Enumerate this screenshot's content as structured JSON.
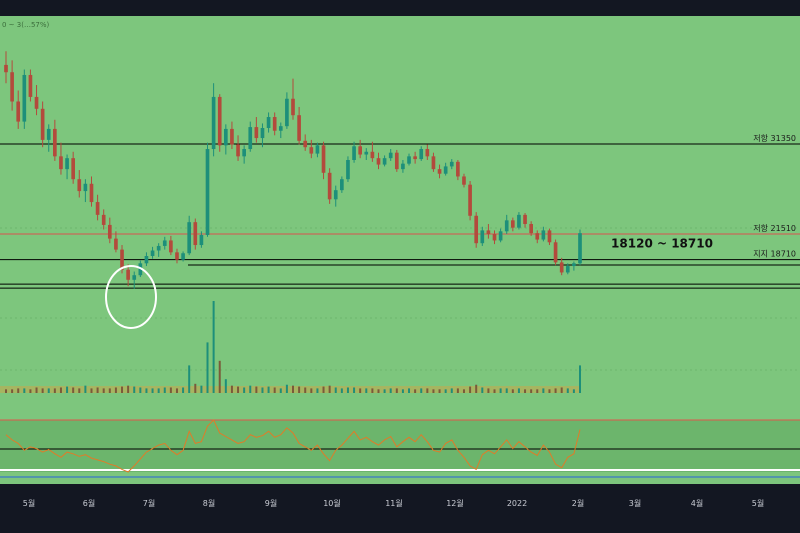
{
  "chart_data": {
    "type": "candlestick",
    "legend_text": "0 ~ 3(…57%)",
    "x_ticks": [
      "5월",
      "6월",
      "7월",
      "8월",
      "9월",
      "10월",
      "11월",
      "12월",
      "2022",
      "2월",
      "3월",
      "4월",
      "5월"
    ],
    "price_levels": [
      {
        "label": "저항 31350",
        "value": 31350,
        "color": "#000000"
      },
      {
        "label": "저항 21510",
        "value": 21510,
        "color": "#d9534f"
      },
      {
        "label": "지지 18710",
        "value": 18710,
        "color": "#000000"
      }
    ],
    "support_zone": {
      "label": "18120 ~ 18710",
      "low": 18120,
      "high": 18710
    },
    "bottom_support": {
      "value": 15800
    },
    "candles": [
      [
        40000,
        41500,
        38000,
        39200
      ],
      [
        39200,
        40500,
        35000,
        36000
      ],
      [
        36000,
        37200,
        33000,
        33800
      ],
      [
        33800,
        39500,
        33000,
        38900
      ],
      [
        38900,
        39500,
        36000,
        36500
      ],
      [
        36500,
        37800,
        34500,
        35200
      ],
      [
        35200,
        36000,
        31000,
        31800
      ],
      [
        31800,
        33500,
        30500,
        33000
      ],
      [
        33000,
        34000,
        29500,
        30000
      ],
      [
        30000,
        31500,
        28000,
        28600
      ],
      [
        28600,
        30200,
        27500,
        29800
      ],
      [
        29800,
        30500,
        27000,
        27500
      ],
      [
        27500,
        28500,
        25500,
        26200
      ],
      [
        26200,
        27500,
        25000,
        27000
      ],
      [
        27000,
        27800,
        24500,
        25000
      ],
      [
        25000,
        25800,
        23000,
        23600
      ],
      [
        23600,
        24200,
        22000,
        22500
      ],
      [
        22500,
        23300,
        20500,
        21000
      ],
      [
        21000,
        21800,
        19500,
        19800
      ],
      [
        19800,
        20300,
        17200,
        17600
      ],
      [
        17600,
        18200,
        15800,
        16500
      ],
      [
        16500,
        17400,
        15500,
        17000
      ],
      [
        17000,
        18600,
        16800,
        18300
      ],
      [
        18300,
        19500,
        18000,
        19100
      ],
      [
        19100,
        20100,
        18800,
        19700
      ],
      [
        19700,
        20500,
        19000,
        20200
      ],
      [
        20200,
        21200,
        19800,
        20800
      ],
      [
        20800,
        21300,
        19200,
        19500
      ],
      [
        19500,
        19900,
        18300,
        18700
      ],
      [
        18700,
        19600,
        18500,
        19400
      ],
      [
        19400,
        23500,
        19200,
        22800
      ],
      [
        22800,
        23200,
        19800,
        20300
      ],
      [
        20300,
        21800,
        20000,
        21400
      ],
      [
        21400,
        31500,
        21200,
        30800
      ],
      [
        30800,
        38000,
        30000,
        36500
      ],
      [
        36500,
        36800,
        30500,
        31200
      ],
      [
        31200,
        33500,
        30200,
        33000
      ],
      [
        33000,
        33800,
        30800,
        31300
      ],
      [
        31300,
        32300,
        29500,
        30000
      ],
      [
        30000,
        31200,
        29200,
        30800
      ],
      [
        30800,
        33800,
        30500,
        33200
      ],
      [
        33200,
        34300,
        31500,
        32000
      ],
      [
        32000,
        33600,
        31000,
        33100
      ],
      [
        33100,
        34800,
        32600,
        34300
      ],
      [
        34300,
        34800,
        32300,
        32800
      ],
      [
        32800,
        33700,
        32000,
        33300
      ],
      [
        33300,
        37000,
        33000,
        36300
      ],
      [
        36300,
        38500,
        34000,
        34500
      ],
      [
        34500,
        35400,
        31300,
        31700
      ],
      [
        31700,
        32400,
        30600,
        31000
      ],
      [
        31000,
        31800,
        29800,
        30300
      ],
      [
        30300,
        31500,
        29900,
        31200
      ],
      [
        31200,
        31600,
        27500,
        28200
      ],
      [
        28200,
        28700,
        24800,
        25300
      ],
      [
        25300,
        26800,
        24500,
        26300
      ],
      [
        26300,
        27800,
        26000,
        27500
      ],
      [
        27500,
        30000,
        27200,
        29600
      ],
      [
        29600,
        31600,
        29300,
        31100
      ],
      [
        31100,
        31800,
        29800,
        30200
      ],
      [
        30200,
        30900,
        29600,
        30500
      ],
      [
        30500,
        31600,
        29400,
        29800
      ],
      [
        29800,
        30400,
        28600,
        29100
      ],
      [
        29100,
        30100,
        28900,
        29800
      ],
      [
        29800,
        30800,
        29500,
        30400
      ],
      [
        30400,
        30700,
        28300,
        28600
      ],
      [
        28600,
        29600,
        28200,
        29200
      ],
      [
        29200,
        30300,
        29000,
        30000
      ],
      [
        30000,
        30500,
        29200,
        29700
      ],
      [
        29700,
        31100,
        29500,
        30800
      ],
      [
        30800,
        31300,
        29600,
        30000
      ],
      [
        30000,
        30400,
        28300,
        28600
      ],
      [
        28600,
        29100,
        27600,
        28100
      ],
      [
        28100,
        29300,
        27900,
        28900
      ],
      [
        28900,
        29700,
        28600,
        29400
      ],
      [
        29400,
        29600,
        27400,
        27800
      ],
      [
        27800,
        28100,
        26600,
        26900
      ],
      [
        26900,
        27300,
        23000,
        23500
      ],
      [
        23500,
        23900,
        20000,
        20500
      ],
      [
        20500,
        22300,
        20200,
        21900
      ],
      [
        21900,
        22600,
        21000,
        21500
      ],
      [
        21500,
        21900,
        20400,
        20800
      ],
      [
        20800,
        22100,
        20600,
        21800
      ],
      [
        21800,
        23600,
        21500,
        23000
      ],
      [
        23000,
        23300,
        21800,
        22200
      ],
      [
        22200,
        23900,
        22000,
        23600
      ],
      [
        23600,
        23800,
        22200,
        22600
      ],
      [
        22600,
        22900,
        21300,
        21600
      ],
      [
        21600,
        21900,
        20500,
        20900
      ],
      [
        20900,
        22300,
        20700,
        21900
      ],
      [
        21900,
        22100,
        20300,
        20600
      ],
      [
        20600,
        20900,
        18100,
        18400
      ],
      [
        18400,
        18900,
        17000,
        17300
      ],
      [
        17300,
        18300,
        17100,
        18000
      ],
      [
        18000,
        18500,
        17500,
        18300
      ],
      [
        18300,
        22000,
        18100,
        21600
      ]
    ],
    "volume": [
      0.04,
      0.04,
      0.05,
      0.05,
      0.04,
      0.06,
      0.05,
      0.05,
      0.05,
      0.06,
      0.07,
      0.06,
      0.05,
      0.08,
      0.05,
      0.06,
      0.05,
      0.05,
      0.06,
      0.07,
      0.08,
      0.07,
      0.06,
      0.05,
      0.05,
      0.05,
      0.06,
      0.06,
      0.05,
      0.06,
      0.3,
      0.1,
      0.08,
      0.55,
      1.0,
      0.35,
      0.15,
      0.08,
      0.07,
      0.06,
      0.08,
      0.07,
      0.06,
      0.07,
      0.06,
      0.05,
      0.09,
      0.08,
      0.07,
      0.06,
      0.05,
      0.05,
      0.07,
      0.08,
      0.06,
      0.05,
      0.06,
      0.06,
      0.05,
      0.05,
      0.05,
      0.04,
      0.04,
      0.05,
      0.05,
      0.04,
      0.05,
      0.04,
      0.05,
      0.05,
      0.04,
      0.04,
      0.04,
      0.05,
      0.05,
      0.04,
      0.07,
      0.09,
      0.06,
      0.05,
      0.04,
      0.05,
      0.05,
      0.04,
      0.05,
      0.04,
      0.04,
      0.04,
      0.05,
      0.04,
      0.05,
      0.06,
      0.05,
      0.04,
      0.3
    ],
    "rsi": [
      58,
      52,
      48,
      40,
      44,
      42,
      38,
      41,
      36,
      32,
      38,
      36,
      33,
      35,
      31,
      29,
      27,
      24,
      22,
      18,
      15,
      22,
      30,
      38,
      42,
      46,
      48,
      40,
      35,
      40,
      62,
      48,
      50,
      68,
      75,
      60,
      56,
      52,
      48,
      50,
      58,
      55,
      57,
      62,
      55,
      58,
      66,
      60,
      48,
      44,
      40,
      46,
      36,
      28,
      40,
      46,
      54,
      62,
      52,
      55,
      50,
      46,
      52,
      56,
      44,
      50,
      55,
      50,
      58,
      50,
      40,
      38,
      48,
      52,
      40,
      32,
      22,
      18,
      35,
      40,
      36,
      44,
      52,
      42,
      50,
      44,
      38,
      34,
      46,
      38,
      24,
      20,
      32,
      36,
      64
    ],
    "rsi_levels": {
      "overbought": 70,
      "mid": 50,
      "oversold": 30
    }
  }
}
